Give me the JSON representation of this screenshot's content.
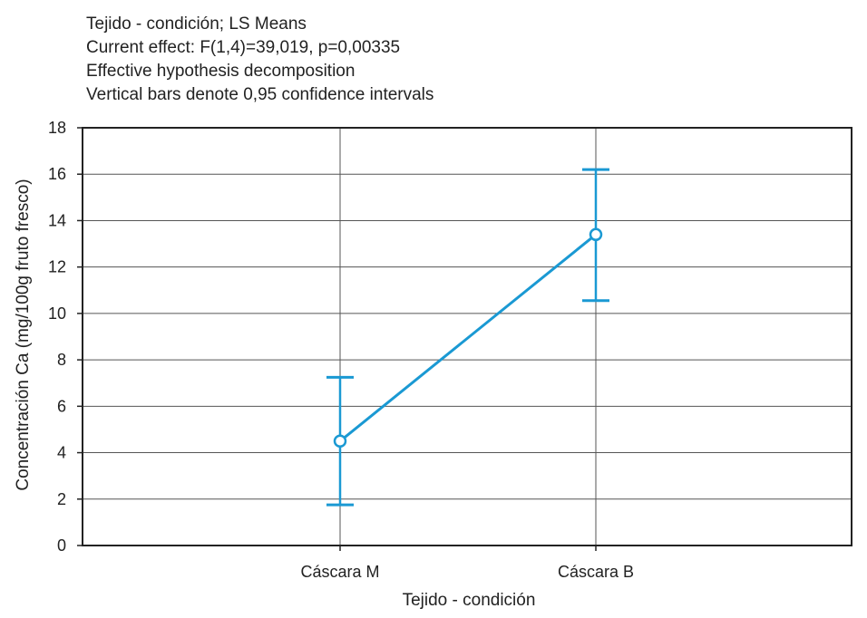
{
  "chart_data": {
    "type": "line",
    "title_lines": [
      "Tejido - condición; LS Means",
      "Current effect: F(1,4)=39,019, p=0,00335",
      "Effective hypothesis decomposition",
      "Vertical bars denote 0,95 confidence intervals"
    ],
    "xlabel": "Tejido - condición",
    "ylabel": "Concentración Ca (mg/100g fruto fresco)",
    "categories": [
      "Cáscara M",
      "Cáscara B"
    ],
    "series": [
      {
        "values": [
          4.5,
          13.4
        ],
        "ci_lower": [
          1.75,
          10.55
        ],
        "ci_upper": [
          7.25,
          16.2
        ]
      }
    ],
    "ylim": [
      0,
      18
    ],
    "yticks": [
      0,
      2,
      4,
      6,
      8,
      10,
      12,
      14,
      16,
      18
    ],
    "grid": true,
    "legend": "none",
    "colors": {
      "series": "#1a99d3",
      "grid": "#555555",
      "frame": "#222222"
    }
  }
}
